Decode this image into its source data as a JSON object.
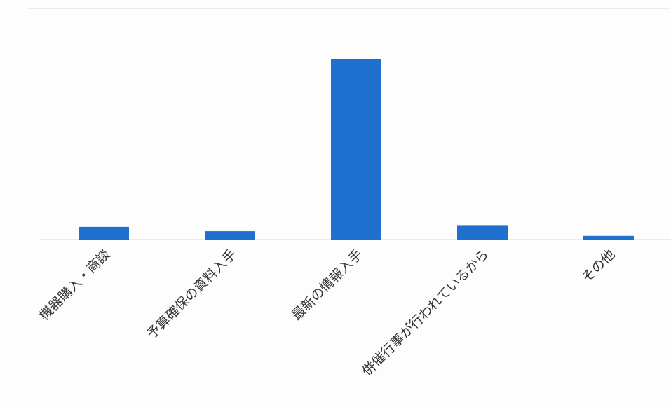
{
  "chart_data": {
    "type": "bar",
    "categories": [
      "機器購入・商談",
      "予算確保の資料入手",
      "最新の情報入手",
      "併催行事が行われているから",
      "その他"
    ],
    "values": [
      7,
      4.6,
      100,
      8,
      2
    ],
    "ylim": [
      0,
      100
    ],
    "title": "",
    "xlabel": "",
    "ylabel": "",
    "grid": false,
    "legend": "none",
    "bar_color": "#1f6fcf",
    "axis_color": "#d9d9d9"
  }
}
